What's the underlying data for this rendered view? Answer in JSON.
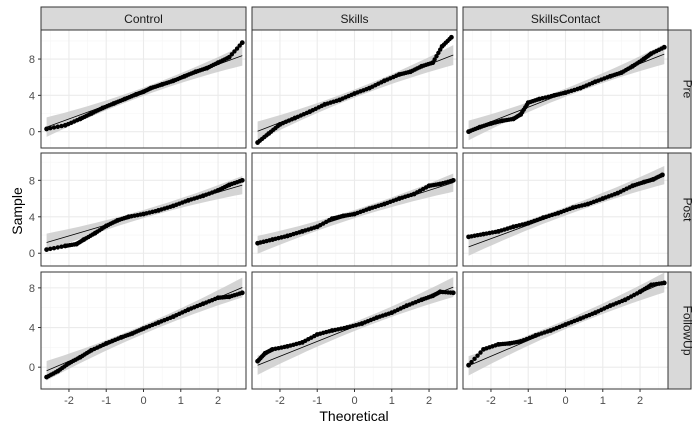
{
  "chart_data": {
    "type": "scatter",
    "subtype": "qq-plot-facet-grid",
    "xlabel": "Theoretical",
    "ylabel": "Sample",
    "xlim": [
      -2.75,
      2.75
    ],
    "x_ticks": [
      -2,
      -1,
      0,
      1,
      2
    ],
    "x_tick_labels": [
      "-2",
      "-1",
      "0",
      "1",
      "2"
    ],
    "y_ticks": [
      0,
      4,
      8
    ],
    "y_tick_labels": [
      "0",
      "4",
      "8"
    ],
    "columns": [
      "Control",
      "Skills",
      "SkillsContact"
    ],
    "rows": [
      "Pre",
      "Post",
      "FollowUp"
    ],
    "row_ylim": [
      [
        -1.8,
        11.2
      ],
      [
        -1.4,
        11.0
      ],
      [
        -2.2,
        9.6
      ]
    ],
    "grid": true,
    "panels": [
      {
        "row": "Pre",
        "column": "Control",
        "line": {
          "intercept": 4.4,
          "slope": 1.5
        },
        "band_halfwidth": [
          0.45,
          1.1
        ],
        "points": [
          [
            -2.6,
            0.3
          ],
          [
            -2.1,
            0.7
          ],
          [
            -1.7,
            1.4
          ],
          [
            -1.4,
            2.0
          ],
          [
            -1.1,
            2.6
          ],
          [
            -0.8,
            3.1
          ],
          [
            -0.5,
            3.6
          ],
          [
            -0.2,
            4.1
          ],
          [
            0.0,
            4.4
          ],
          [
            0.2,
            4.8
          ],
          [
            0.5,
            5.2
          ],
          [
            0.8,
            5.6
          ],
          [
            1.1,
            6.1
          ],
          [
            1.4,
            6.6
          ],
          [
            1.7,
            7.0
          ],
          [
            2.0,
            7.6
          ],
          [
            2.3,
            8.2
          ],
          [
            2.65,
            9.8
          ]
        ]
      },
      {
        "row": "Pre",
        "column": "Skills",
        "line": {
          "intercept": 4.2,
          "slope": 1.6
        },
        "band_halfwidth": [
          0.45,
          1.1
        ],
        "points": [
          [
            -2.6,
            -1.2
          ],
          [
            -2.3,
            -0.2
          ],
          [
            -2.0,
            0.8
          ],
          [
            -1.6,
            1.5
          ],
          [
            -1.2,
            2.2
          ],
          [
            -0.8,
            3.0
          ],
          [
            -0.4,
            3.5
          ],
          [
            0.0,
            4.2
          ],
          [
            0.4,
            4.8
          ],
          [
            0.8,
            5.6
          ],
          [
            1.2,
            6.3
          ],
          [
            1.5,
            6.6
          ],
          [
            1.8,
            7.2
          ],
          [
            2.1,
            7.6
          ],
          [
            2.35,
            9.4
          ],
          [
            2.6,
            10.4
          ]
        ]
      },
      {
        "row": "Pre",
        "column": "SkillsContact",
        "line": {
          "intercept": 4.3,
          "slope": 1.6
        },
        "band_halfwidth": [
          0.45,
          1.1
        ],
        "points": [
          [
            -2.6,
            0.0
          ],
          [
            -2.3,
            0.5
          ],
          [
            -2.0,
            0.9
          ],
          [
            -1.7,
            1.2
          ],
          [
            -1.4,
            1.4
          ],
          [
            -1.2,
            1.9
          ],
          [
            -1.0,
            3.2
          ],
          [
            -0.7,
            3.6
          ],
          [
            -0.3,
            4.0
          ],
          [
            0.0,
            4.3
          ],
          [
            0.4,
            4.8
          ],
          [
            0.8,
            5.5
          ],
          [
            1.2,
            6.1
          ],
          [
            1.5,
            6.5
          ],
          [
            1.8,
            7.2
          ],
          [
            2.1,
            8.0
          ],
          [
            2.3,
            8.6
          ],
          [
            2.65,
            9.3
          ]
        ]
      },
      {
        "row": "Post",
        "column": "Control",
        "line": {
          "intercept": 4.3,
          "slope": 1.2
        },
        "band_halfwidth": [
          0.45,
          1.0
        ],
        "points": [
          [
            -2.6,
            0.4
          ],
          [
            -2.1,
            0.8
          ],
          [
            -1.8,
            1.0
          ],
          [
            -1.6,
            1.5
          ],
          [
            -1.3,
            2.2
          ],
          [
            -1.0,
            3.0
          ],
          [
            -0.7,
            3.6
          ],
          [
            -0.4,
            4.0
          ],
          [
            0.0,
            4.3
          ],
          [
            0.4,
            4.7
          ],
          [
            0.8,
            5.2
          ],
          [
            1.2,
            5.8
          ],
          [
            1.6,
            6.3
          ],
          [
            2.0,
            6.9
          ],
          [
            2.3,
            7.5
          ],
          [
            2.65,
            8.0
          ]
        ]
      },
      {
        "row": "Post",
        "column": "Skills",
        "line": {
          "intercept": 4.3,
          "slope": 1.3
        },
        "band_halfwidth": [
          0.45,
          1.0
        ],
        "points": [
          [
            -2.6,
            1.1
          ],
          [
            -2.2,
            1.5
          ],
          [
            -1.8,
            1.9
          ],
          [
            -1.4,
            2.4
          ],
          [
            -1.0,
            2.9
          ],
          [
            -0.6,
            3.8
          ],
          [
            -0.3,
            4.1
          ],
          [
            0.0,
            4.3
          ],
          [
            0.4,
            4.9
          ],
          [
            0.8,
            5.4
          ],
          [
            1.2,
            6.0
          ],
          [
            1.6,
            6.5
          ],
          [
            2.0,
            7.4
          ],
          [
            2.3,
            7.6
          ],
          [
            2.65,
            8.0
          ]
        ]
      },
      {
        "row": "Post",
        "column": "SkillsContact",
        "line": {
          "intercept": 4.6,
          "slope": 1.5
        },
        "band_halfwidth": [
          0.45,
          1.0
        ],
        "points": [
          [
            -2.6,
            1.8
          ],
          [
            -2.2,
            2.1
          ],
          [
            -1.8,
            2.4
          ],
          [
            -1.4,
            2.9
          ],
          [
            -1.0,
            3.3
          ],
          [
            -0.6,
            3.9
          ],
          [
            -0.2,
            4.4
          ],
          [
            0.2,
            5.0
          ],
          [
            0.6,
            5.4
          ],
          [
            1.0,
            6.0
          ],
          [
            1.4,
            6.6
          ],
          [
            1.8,
            7.4
          ],
          [
            2.1,
            7.8
          ],
          [
            2.35,
            8.1
          ],
          [
            2.6,
            8.6
          ]
        ]
      },
      {
        "row": "FollowUp",
        "column": "Control",
        "line": {
          "intercept": 3.8,
          "slope": 1.6
        },
        "band_halfwidth": [
          0.45,
          1.0
        ],
        "points": [
          [
            -2.6,
            -1.0
          ],
          [
            -2.3,
            -0.4
          ],
          [
            -2.0,
            0.4
          ],
          [
            -1.7,
            1.0
          ],
          [
            -1.4,
            1.7
          ],
          [
            -1.0,
            2.4
          ],
          [
            -0.6,
            3.0
          ],
          [
            -0.3,
            3.4
          ],
          [
            0.0,
            3.9
          ],
          [
            0.4,
            4.5
          ],
          [
            0.8,
            5.1
          ],
          [
            1.2,
            5.8
          ],
          [
            1.6,
            6.4
          ],
          [
            2.0,
            7.0
          ],
          [
            2.3,
            7.1
          ],
          [
            2.65,
            7.5
          ]
        ]
      },
      {
        "row": "FollowUp",
        "column": "Skills",
        "line": {
          "intercept": 4.1,
          "slope": 1.5
        },
        "band_halfwidth": [
          0.45,
          1.0
        ],
        "points": [
          [
            -2.6,
            0.6
          ],
          [
            -2.4,
            1.4
          ],
          [
            -2.2,
            1.8
          ],
          [
            -1.8,
            2.1
          ],
          [
            -1.4,
            2.5
          ],
          [
            -1.0,
            3.3
          ],
          [
            -0.6,
            3.7
          ],
          [
            -0.2,
            4.0
          ],
          [
            0.2,
            4.4
          ],
          [
            0.6,
            5.0
          ],
          [
            1.0,
            5.5
          ],
          [
            1.4,
            6.2
          ],
          [
            1.8,
            6.8
          ],
          [
            2.1,
            7.2
          ],
          [
            2.3,
            7.6
          ],
          [
            2.65,
            7.5
          ]
        ]
      },
      {
        "row": "FollowUp",
        "column": "SkillsContact",
        "line": {
          "intercept": 4.3,
          "slope": 1.6
        },
        "band_halfwidth": [
          0.45,
          1.0
        ],
        "points": [
          [
            -2.6,
            0.2
          ],
          [
            -2.2,
            1.8
          ],
          [
            -1.8,
            2.3
          ],
          [
            -1.5,
            2.4
          ],
          [
            -1.2,
            2.6
          ],
          [
            -0.8,
            3.2
          ],
          [
            -0.4,
            3.7
          ],
          [
            0.0,
            4.3
          ],
          [
            0.4,
            4.9
          ],
          [
            0.8,
            5.5
          ],
          [
            1.2,
            6.2
          ],
          [
            1.6,
            6.8
          ],
          [
            2.0,
            7.6
          ],
          [
            2.3,
            8.3
          ],
          [
            2.65,
            8.5
          ]
        ]
      }
    ]
  },
  "colors": {
    "panel_background": "#ffffff",
    "panel_border": "#333333",
    "grid_major": "#ebebeb",
    "grid_minor": "#f5f5f5",
    "strip_fill": "#d9d9d9",
    "band_fill": "#cccccc",
    "points": "#000000",
    "reference_line": "#000000",
    "tick_text": "#4d4d4d"
  }
}
